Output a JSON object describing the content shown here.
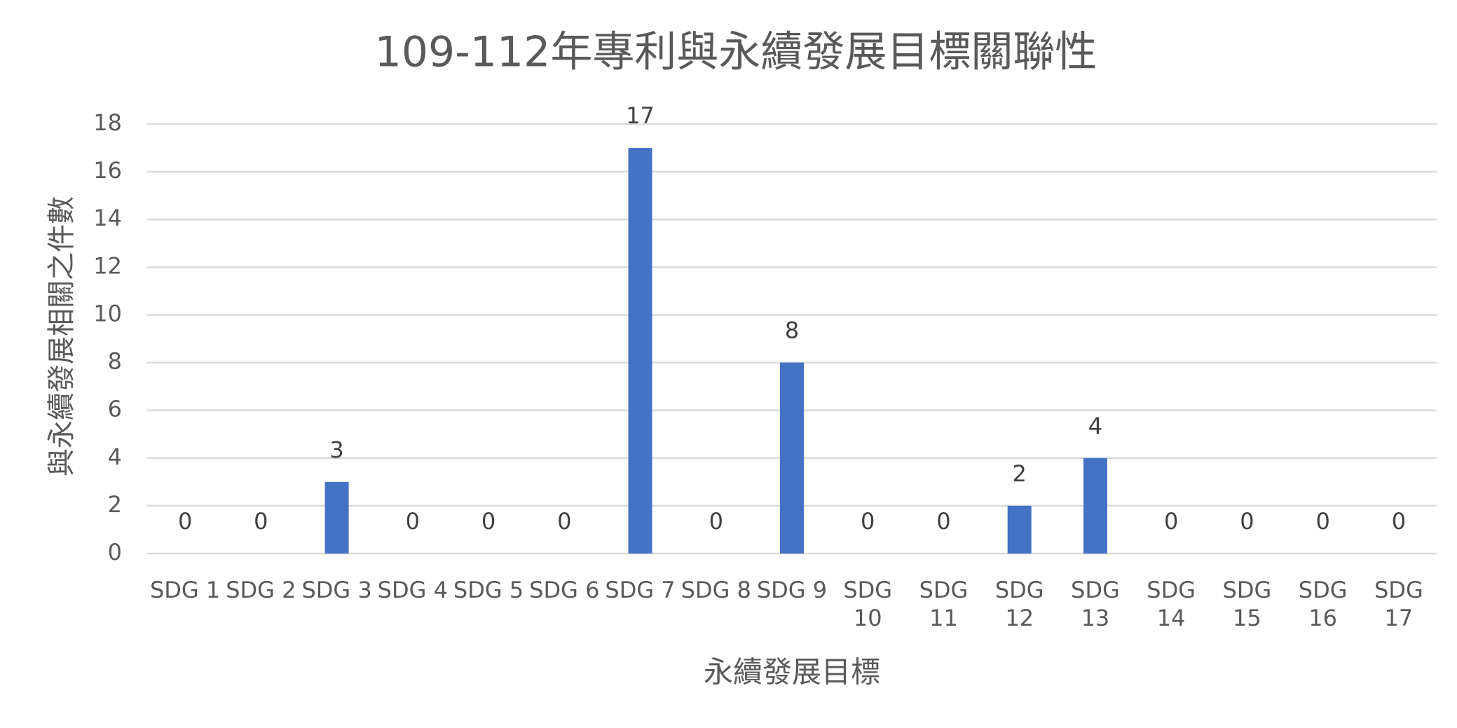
{
  "chart_data": {
    "type": "bar",
    "title": "109-112年專利與永續發展目標關聯性",
    "x_label": "永續發展目標",
    "y_label": "與永續發展相關之件數",
    "categories": [
      "SDG 1",
      "SDG 2",
      "SDG 3",
      "SDG 4",
      "SDG 5",
      "SDG 6",
      "SDG 7",
      "SDG 8",
      "SDG 9",
      "SDG 10",
      "SDG 11",
      "SDG 12",
      "SDG 13",
      "SDG 14",
      "SDG 15",
      "SDG 16",
      "SDG 17"
    ],
    "values": [
      0,
      0,
      3,
      0,
      0,
      0,
      17,
      0,
      8,
      0,
      0,
      2,
      4,
      0,
      0,
      0,
      0
    ],
    "color": "#4472c4",
    "ylim": [
      0,
      18
    ],
    "yticks": [
      0,
      2,
      4,
      6,
      8,
      10,
      12,
      14,
      16,
      18
    ],
    "grid": true
  }
}
